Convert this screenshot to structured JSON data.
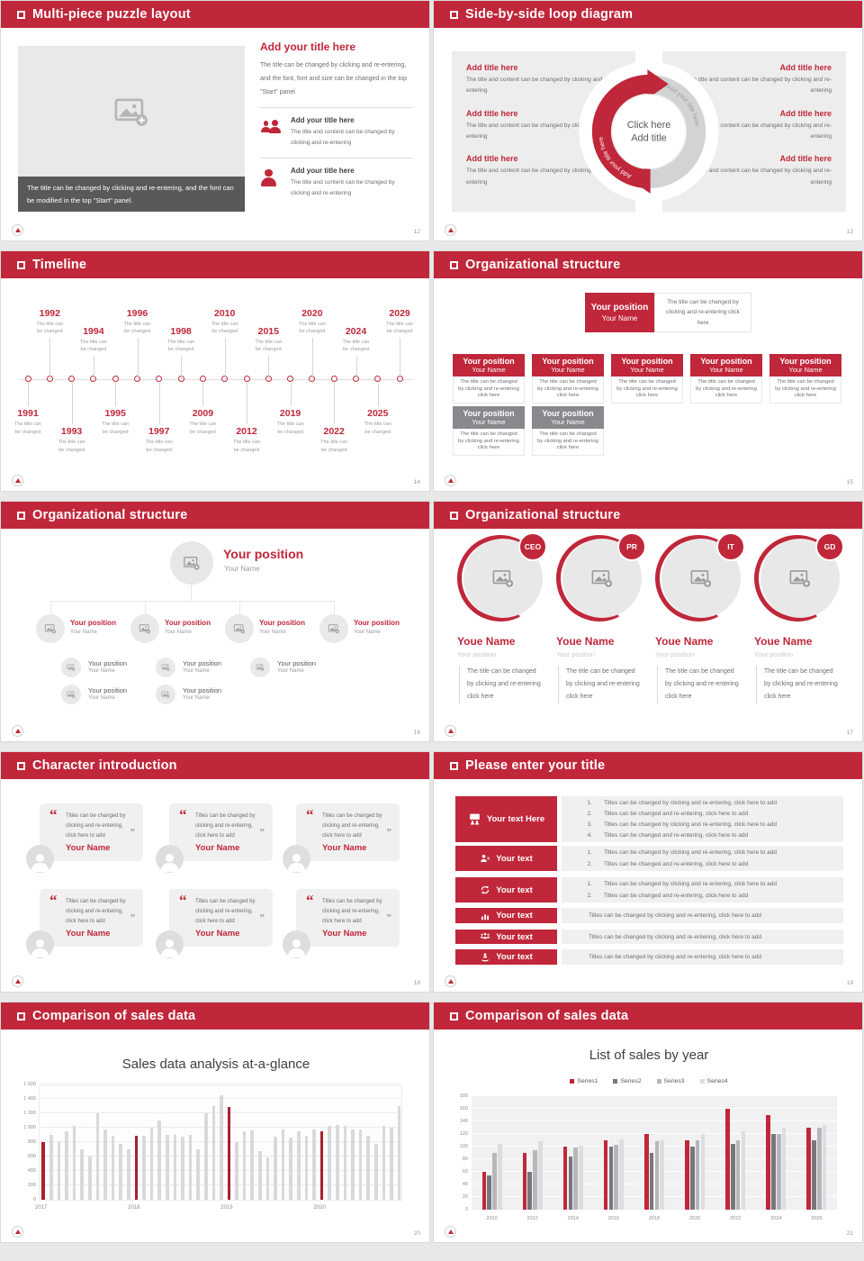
{
  "theme": {
    "red": "#c0273a",
    "gray_box": "#87898c",
    "panel": "#ededed",
    "caption_bar": "#58595b"
  },
  "slides": [
    {
      "page_no": "12",
      "title": "Multi-piece puzzle layout",
      "image_caption": "The title can be changed by clicking and re-entering, and the font can be modified in the top \"Start\" panel.",
      "heading": "Add your title here",
      "paragraph": "The title can be changed by clicking and re-entering, and the font, font and size can be changed in the top \"Start\" panel",
      "items": [
        {
          "icon": "people-icon",
          "heading": "Add your title here",
          "text": "The title and content can be changed by clicking and re-entering"
        },
        {
          "icon": "person-icon",
          "heading": "Add your title here",
          "text": "The title and content can be changed by clicking and re-entering"
        }
      ]
    },
    {
      "page_no": "13",
      "title": "Side-by-side loop diagram",
      "item_heading": "Add title here",
      "item_text": "The title and content can be changed by clicking and re-entering",
      "left_count": 3,
      "right_count": 3,
      "arrow_label_left": "Add your title here",
      "arrow_label_right": "Add your title here",
      "center_line1": "Click here",
      "center_line2": "Add title"
    },
    {
      "page_no": "14",
      "title": "Timeline",
      "caption_line1": "The title can",
      "caption_line2": "be changed",
      "years": [
        "1991",
        "1992",
        "1993",
        "1994",
        "1995",
        "1996",
        "1997",
        "1998",
        "2009",
        "2010",
        "2012",
        "2015",
        "2019",
        "2020",
        "2022",
        "2024",
        "2025",
        "2029"
      ]
    },
    {
      "page_no": "15",
      "title": "Organizational structure",
      "position": "Your position",
      "name": "Your Name",
      "note": "The title can be changed by clicking and re-entering click here",
      "box_text": "The title can be changed by clicking and re-entering click here",
      "box_variants": [
        "red",
        "red",
        "red",
        "red",
        "red",
        "gray",
        "gray"
      ]
    },
    {
      "page_no": "16",
      "title": "Organizational structure",
      "position": "Your position",
      "name": "Your Name",
      "columns": [
        2,
        2,
        1,
        0
      ]
    },
    {
      "page_no": "17",
      "title": "Organizational structure",
      "badges": [
        "CEO",
        "PR",
        "IT",
        "GD"
      ],
      "name": "Youe Name",
      "position": "Your position",
      "text_lines": [
        "The title can be changed",
        "by clicking and re-entering",
        "click here"
      ]
    },
    {
      "page_no": "18",
      "title": "Character introduction",
      "card_count": 6,
      "card_text": "Titles can be changed by clicking and re-entering, click here to add",
      "card_name": "Your Name"
    },
    {
      "page_no": "19",
      "title": "Please enter your title",
      "rows": [
        {
          "icon": "presentation-icon",
          "label": "Your text Here",
          "numbered": true,
          "items": [
            "Titles can be changed by clicking and re-entering, click here to add",
            "Titles can be changed and re-entering, click here to add",
            "Titles can be changed by clicking and re-entering, click here to add",
            "Titles can be changed and re-entering, click here to add"
          ]
        },
        {
          "icon": "person-edit-icon",
          "label": "Your text",
          "numbered": true,
          "items": [
            "Titles can be changed by clicking and re-entering, click here to add",
            "Titles can be changed and re-entering, click here to add"
          ]
        },
        {
          "icon": "sync-icon",
          "label": "Your text",
          "numbered": true,
          "items": [
            "Titles can be changed by clicking and re-entering, click here to add",
            "Titles can be changed and re-entering, click here to add"
          ]
        },
        {
          "icon": "bar-chart-icon",
          "label": "Your text",
          "numbered": false,
          "items": [
            "Titles can be changed by clicking and re-entering, click here to add"
          ]
        },
        {
          "icon": "group-icon",
          "label": "Your text",
          "numbered": false,
          "items": [
            "Titles can be changed by clicking and re-entering, click here to add"
          ]
        },
        {
          "icon": "hand-person-icon",
          "label": "Your text",
          "numbered": false,
          "items": [
            "Titles can be changed by clicking and re-entering, click here to add"
          ]
        }
      ]
    },
    {
      "page_no": "20",
      "title": "Comparison of sales data"
    },
    {
      "page_no": "21",
      "title": "Comparison of sales data"
    }
  ],
  "chart_data": [
    {
      "type": "bar",
      "title": "Sales data analysis at-a-glance",
      "xlabel": "",
      "ylabel": "",
      "ylim": [
        0,
        1600
      ],
      "ytick_step": 200,
      "ytick_labels": [
        "0",
        "200",
        "400",
        "600",
        "800",
        "1 000",
        "1 200",
        "1 400",
        "1 600"
      ],
      "grid": true,
      "bar_color": "#d9d9d9",
      "highlight_color": "#ab1f31",
      "groups": [
        {
          "label": "2017",
          "values": [
            800,
            900,
            800,
            950,
            1020,
            700,
            600,
            1200,
            980,
            890,
            780,
            700
          ]
        },
        {
          "label": "2018",
          "values": [
            890,
            890,
            1000,
            1100,
            900,
            900,
            880,
            900,
            700,
            1200,
            1300,
            1450
          ]
        },
        {
          "label": "2019",
          "values": [
            1290,
            800,
            950,
            965,
            670,
            590,
            870,
            980,
            860,
            950,
            890,
            980
          ]
        },
        {
          "label": "2020",
          "values": [
            950,
            1020,
            1040,
            1020,
            980,
            970,
            890,
            780,
            1020,
            1000,
            1300
          ]
        }
      ],
      "note": "first bar of each year group is highlighted red; year label sits under that bar"
    },
    {
      "type": "bar",
      "title": "List of sales by year",
      "xlabel": "",
      "ylabel": "",
      "ylim": [
        0,
        180
      ],
      "ytick_step": 20,
      "grid": true,
      "legend_position": "top",
      "categories": [
        "2010",
        "2012",
        "2014",
        "2016",
        "2018",
        "2020",
        "2022",
        "2024",
        "2026"
      ],
      "series": [
        {
          "name": "Series1",
          "color": "#c0273a",
          "values": [
            60,
            90,
            100,
            110,
            120,
            110,
            160,
            150,
            130
          ]
        },
        {
          "name": "Series2",
          "color": "#77787b",
          "values": [
            55,
            60,
            85,
            100,
            90,
            100,
            105,
            120,
            110
          ]
        },
        {
          "name": "Series3",
          "color": "#b5b7ba",
          "values": [
            90,
            95,
            98,
            103,
            108,
            110,
            110,
            120,
            130
          ]
        },
        {
          "name": "Series4",
          "color": "#dcdddf",
          "values": [
            105,
            108,
            102,
            112,
            110,
            120,
            125,
            130,
            135
          ]
        }
      ]
    }
  ]
}
